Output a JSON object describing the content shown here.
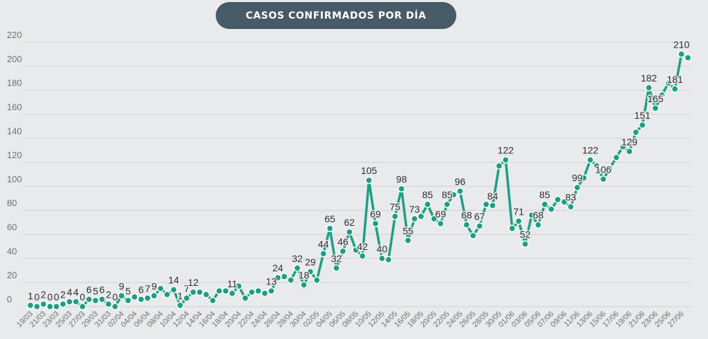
{
  "chart_data": {
    "type": "line",
    "title": "CASOS CONFIRMADOS POR DÍA",
    "xlabel": "",
    "ylabel": "",
    "ylim": [
      0,
      220
    ],
    "yticks": [
      0,
      20,
      40,
      60,
      80,
      100,
      120,
      140,
      160,
      180,
      200,
      220
    ],
    "grid": true,
    "color": "#1e9e84",
    "x_tick_labels": [
      "19/03",
      "21/03",
      "23/03",
      "25/03",
      "27/03",
      "29/03",
      "31/03",
      "02/04",
      "04/04",
      "06/04",
      "08/04",
      "10/04",
      "12/04",
      "14/04",
      "16/04",
      "18/04",
      "20/04",
      "22/04",
      "24/04",
      "26/04",
      "28/04",
      "30/04",
      "02/05",
      "04/05",
      "06/05",
      "08/05",
      "10/05",
      "12/05",
      "14/05",
      "16/05",
      "18/05",
      "20/05",
      "22/05",
      "24/05",
      "26/05",
      "28/05",
      "30/05",
      "01/06",
      "03/06",
      "05/06",
      "07/06",
      "09/06",
      "11/06",
      "13/06",
      "15/06",
      "17/06",
      "19/06",
      "21/06",
      "23/06",
      "25/06",
      "27/06"
    ],
    "values": [
      1,
      0,
      2,
      0,
      0,
      2,
      4,
      4,
      0,
      6,
      5,
      6,
      2,
      0,
      9,
      5,
      8,
      6,
      7,
      9,
      15,
      10,
      14,
      1,
      7,
      12,
      12,
      10,
      5,
      13,
      13,
      11,
      17,
      7,
      12,
      13,
      11,
      13,
      24,
      25,
      22,
      32,
      18,
      29,
      22,
      44,
      65,
      32,
      46,
      62,
      47,
      42,
      105,
      69,
      40,
      39,
      75,
      98,
      55,
      73,
      75,
      85,
      73,
      69,
      85,
      93,
      96,
      68,
      59,
      67,
      85,
      84,
      117,
      122,
      65,
      71,
      52,
      76,
      68,
      85,
      81,
      89,
      87,
      83,
      99,
      107,
      122,
      117,
      106,
      115,
      124,
      133,
      129,
      145,
      151,
      182,
      165,
      176,
      186,
      181,
      210,
      207
    ],
    "data_labels": [
      {
        "i": 0,
        "text": "1"
      },
      {
        "i": 1,
        "text": "0"
      },
      {
        "i": 2,
        "text": "2"
      },
      {
        "i": 3,
        "text": "0"
      },
      {
        "i": 4,
        "text": "0"
      },
      {
        "i": 5,
        "text": "2"
      },
      {
        "i": 6,
        "text": "4"
      },
      {
        "i": 7,
        "text": "4"
      },
      {
        "i": 8,
        "text": "0"
      },
      {
        "i": 9,
        "text": "6"
      },
      {
        "i": 10,
        "text": "5"
      },
      {
        "i": 11,
        "text": "6"
      },
      {
        "i": 12,
        "text": "2"
      },
      {
        "i": 13,
        "text": "0"
      },
      {
        "i": 14,
        "text": "9"
      },
      {
        "i": 15,
        "text": "5"
      },
      {
        "i": 17,
        "text": "6"
      },
      {
        "i": 18,
        "text": "7"
      },
      {
        "i": 19,
        "text": "9"
      },
      {
        "i": 22,
        "text": "14"
      },
      {
        "i": 23,
        "text": "1"
      },
      {
        "i": 24,
        "text": "7"
      },
      {
        "i": 25,
        "text": "12"
      },
      {
        "i": 31,
        "text": "11"
      },
      {
        "i": 37,
        "text": "13"
      },
      {
        "i": 38,
        "text": "24"
      },
      {
        "i": 41,
        "text": "32"
      },
      {
        "i": 42,
        "text": "18"
      },
      {
        "i": 43,
        "text": "29"
      },
      {
        "i": 45,
        "text": "44"
      },
      {
        "i": 46,
        "text": "65"
      },
      {
        "i": 47,
        "text": "32"
      },
      {
        "i": 48,
        "text": "46"
      },
      {
        "i": 49,
        "text": "62"
      },
      {
        "i": 51,
        "text": "42"
      },
      {
        "i": 52,
        "text": "105"
      },
      {
        "i": 53,
        "text": "69"
      },
      {
        "i": 54,
        "text": "40"
      },
      {
        "i": 56,
        "text": "75"
      },
      {
        "i": 57,
        "text": "98"
      },
      {
        "i": 58,
        "text": "55"
      },
      {
        "i": 59,
        "text": "73"
      },
      {
        "i": 61,
        "text": "85"
      },
      {
        "i": 63,
        "text": "69"
      },
      {
        "i": 64,
        "text": "85"
      },
      {
        "i": 66,
        "text": "96"
      },
      {
        "i": 67,
        "text": "68"
      },
      {
        "i": 69,
        "text": "67"
      },
      {
        "i": 71,
        "text": "84"
      },
      {
        "i": 73,
        "text": "122"
      },
      {
        "i": 75,
        "text": "71"
      },
      {
        "i": 76,
        "text": "52"
      },
      {
        "i": 78,
        "text": "68"
      },
      {
        "i": 79,
        "text": "85"
      },
      {
        "i": 83,
        "text": "83"
      },
      {
        "i": 84,
        "text": "99"
      },
      {
        "i": 86,
        "text": "122"
      },
      {
        "i": 88,
        "text": "106"
      },
      {
        "i": 92,
        "text": "129"
      },
      {
        "i": 94,
        "text": "151"
      },
      {
        "i": 95,
        "text": "182"
      },
      {
        "i": 96,
        "text": "165"
      },
      {
        "i": 99,
        "text": "181"
      },
      {
        "i": 100,
        "text": "210"
      }
    ]
  }
}
